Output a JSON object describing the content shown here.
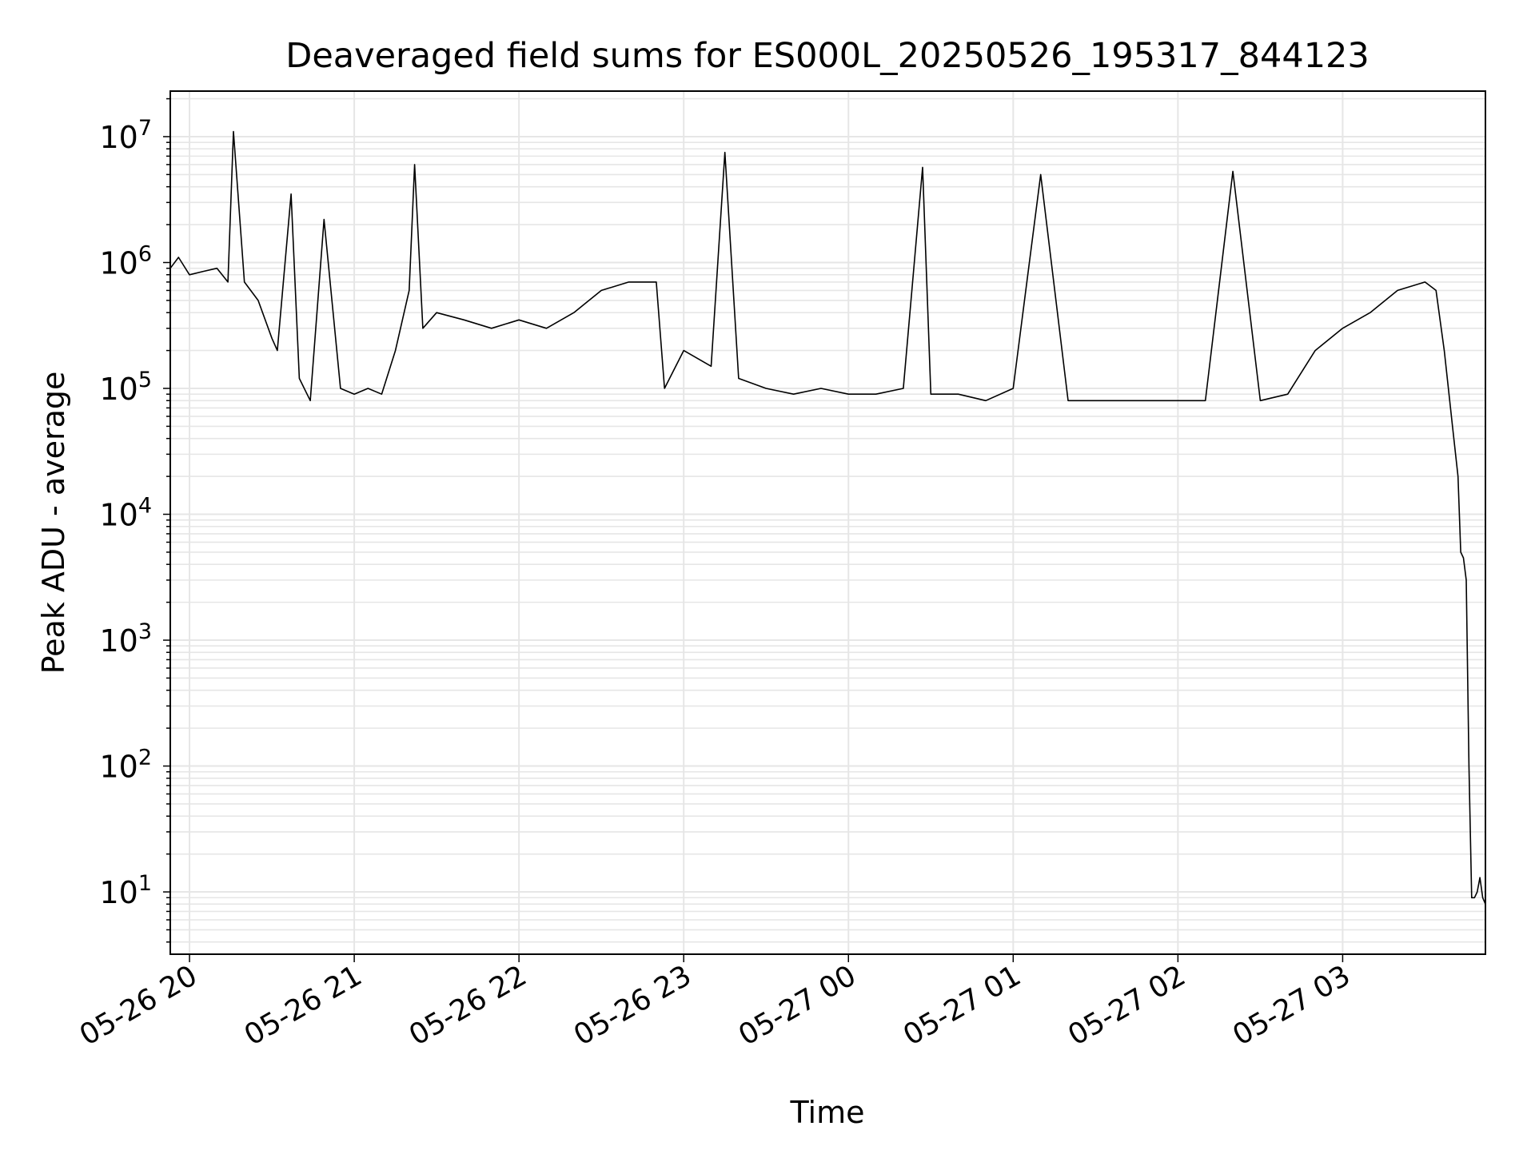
{
  "chart_data": {
    "type": "line",
    "title": "Deaveraged field sums for ES000L_20250526_195317_844123",
    "xlabel": "Time",
    "ylabel": "Peak ADU - average",
    "yscale": "log",
    "ylim": [
      3.2,
      23000000
    ],
    "xlim": [
      "2025-05-26 19:53",
      "2025-05-27 03:52"
    ],
    "grid": true,
    "line_color": "#000000",
    "grid_color": "#e6e6e6",
    "x_ticks": [
      {
        "value": "2025-05-26 20:00",
        "label": "05-26 20"
      },
      {
        "value": "2025-05-26 21:00",
        "label": "05-26 21"
      },
      {
        "value": "2025-05-26 22:00",
        "label": "05-26 22"
      },
      {
        "value": "2025-05-26 23:00",
        "label": "05-26 23"
      },
      {
        "value": "2025-05-27 00:00",
        "label": "05-27 00"
      },
      {
        "value": "2025-05-27 01:00",
        "label": "05-27 01"
      },
      {
        "value": "2025-05-27 02:00",
        "label": "05-27 02"
      },
      {
        "value": "2025-05-27 03:00",
        "label": "05-27 03"
      }
    ],
    "y_ticks": [
      {
        "value": 10,
        "base": "10",
        "exp": "1"
      },
      {
        "value": 100,
        "base": "10",
        "exp": "2"
      },
      {
        "value": 1000,
        "base": "10",
        "exp": "3"
      },
      {
        "value": 10000,
        "base": "10",
        "exp": "4"
      },
      {
        "value": 100000,
        "base": "10",
        "exp": "5"
      },
      {
        "value": 1000000,
        "base": "10",
        "exp": "6"
      },
      {
        "value": 10000000,
        "base": "10",
        "exp": "7"
      }
    ],
    "series": [
      {
        "x": [
          "2025-05-26 19:53",
          "2025-05-26 19:56",
          "2025-05-26 20:00",
          "2025-05-26 20:05",
          "2025-05-26 20:10",
          "2025-05-26 20:14",
          "2025-05-26 20:16",
          "2025-05-26 20:20",
          "2025-05-26 20:25",
          "2025-05-26 20:30",
          "2025-05-26 20:32",
          "2025-05-26 20:37",
          "2025-05-26 20:40",
          "2025-05-26 20:44",
          "2025-05-26 20:49",
          "2025-05-26 20:55",
          "2025-05-26 21:00",
          "2025-05-26 21:05",
          "2025-05-26 21:10",
          "2025-05-26 21:15",
          "2025-05-26 21:20",
          "2025-05-26 21:22",
          "2025-05-26 21:25",
          "2025-05-26 21:30",
          "2025-05-26 21:40",
          "2025-05-26 21:50",
          "2025-05-26 22:00",
          "2025-05-26 22:10",
          "2025-05-26 22:20",
          "2025-05-26 22:30",
          "2025-05-26 22:40",
          "2025-05-26 22:50",
          "2025-05-26 22:53",
          "2025-05-26 23:00",
          "2025-05-26 23:10",
          "2025-05-26 23:15",
          "2025-05-26 23:20",
          "2025-05-26 23:30",
          "2025-05-26 23:40",
          "2025-05-26 23:50",
          "2025-05-27 00:00",
          "2025-05-27 00:10",
          "2025-05-27 00:20",
          "2025-05-27 00:27",
          "2025-05-27 00:30",
          "2025-05-27 00:40",
          "2025-05-27 00:50",
          "2025-05-27 01:00",
          "2025-05-27 01:10",
          "2025-05-27 01:20",
          "2025-05-27 01:30",
          "2025-05-27 01:40",
          "2025-05-27 01:50",
          "2025-05-27 02:00",
          "2025-05-27 02:10",
          "2025-05-27 02:20",
          "2025-05-27 02:30",
          "2025-05-27 02:40",
          "2025-05-27 02:50",
          "2025-05-27 03:00",
          "2025-05-27 03:10",
          "2025-05-27 03:20",
          "2025-05-27 03:30",
          "2025-05-27 03:34",
          "2025-05-27 03:37",
          "2025-05-27 03:40",
          "2025-05-27 03:42",
          "2025-05-27 03:43",
          "2025-05-27 03:44",
          "2025-05-27 03:45",
          "2025-05-27 03:46",
          "2025-05-27 03:47",
          "2025-05-27 03:48",
          "2025-05-27 03:49",
          "2025-05-27 03:50",
          "2025-05-27 03:51",
          "2025-05-27 03:52"
        ],
        "y": [
          900000,
          1100000,
          800000,
          850000,
          900000,
          700000,
          11000000,
          700000,
          500000,
          250000,
          200000,
          3500000,
          120000,
          80000,
          2200000,
          100000,
          90000,
          100000,
          90000,
          200000,
          600000,
          6000000,
          300000,
          400000,
          350000,
          300000,
          350000,
          300000,
          400000,
          600000,
          700000,
          700000,
          100000,
          200000,
          150000,
          7500000,
          120000,
          100000,
          90000,
          100000,
          90000,
          90000,
          100000,
          5700000,
          90000,
          90000,
          80000,
          100000,
          5000000,
          80000,
          80000,
          80000,
          80000,
          80000,
          80000,
          5300000,
          80000,
          90000,
          200000,
          300000,
          400000,
          600000,
          700000,
          600000,
          200000,
          50000,
          20000,
          5000,
          4500,
          3000,
          100,
          9,
          9,
          10,
          13,
          9,
          8
        ]
      }
    ]
  }
}
